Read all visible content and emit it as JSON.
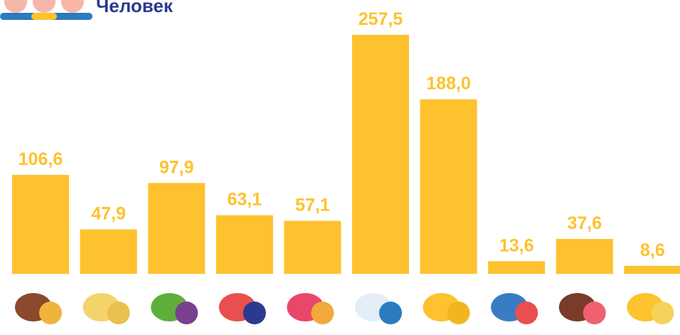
{
  "chart_data": {
    "type": "bar",
    "title": "Человек",
    "categories": [
      null,
      null,
      null,
      null,
      null,
      null,
      null,
      null,
      null,
      null
    ],
    "values": [
      106.6,
      47.9,
      97.9,
      63.1,
      57.1,
      257.5,
      188.0,
      13.6,
      37.6,
      8.6
    ],
    "value_labels": [
      "106,6",
      "47,9",
      "97,9",
      "63,1",
      "57,1",
      "257,5",
      "188,0",
      "13,6",
      "37,6",
      "8,6"
    ],
    "color": "#fdc22d"
  }
}
